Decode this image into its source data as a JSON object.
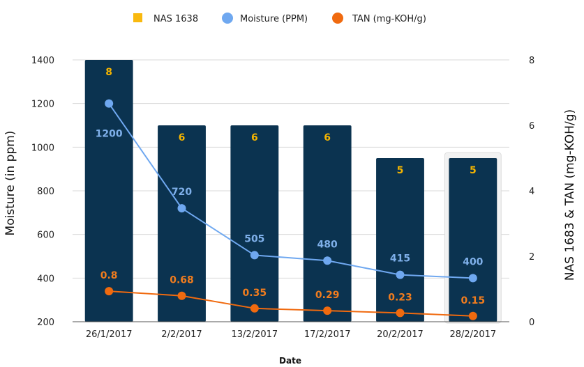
{
  "chart_data": {
    "type": "bar",
    "categories": [
      "26/1/2017",
      "2/2/2017",
      "13/2/2017",
      "17/2/2017",
      "20/2/2017",
      "28/2/2017"
    ],
    "series": [
      {
        "name": "NAS 1638",
        "type": "bar",
        "axis": "right",
        "values": [
          8,
          6,
          6,
          6,
          5,
          5
        ],
        "color": "#0b3350",
        "label_color": "#f4b400",
        "legend_color": "#f9b90f"
      },
      {
        "name": "Moisture (PPM)",
        "type": "line",
        "axis": "left",
        "values": [
          1200,
          720,
          505,
          480,
          415,
          400
        ],
        "color": "#6fa8f0",
        "label_color": "#7fb0ea"
      },
      {
        "name": "TAN (mg-KOH/g)",
        "type": "line",
        "axis": "left",
        "values": [
          0.8,
          0.68,
          0.35,
          0.29,
          0.23,
          0.15
        ],
        "color": "#f06a0f",
        "label_color": "#f07c1e"
      }
    ],
    "xlabel": "Date",
    "ylabel": "Moisture (in ppm)",
    "y2label": "NAS 1683 & TAN (mg-KOH/g)",
    "ylim": [
      200,
      1400
    ],
    "y2lim": [
      0,
      8
    ],
    "yticks": [
      "200",
      "400",
      "600",
      "800",
      "1000",
      "1200",
      "1400"
    ],
    "y2ticks": [
      "0",
      "2",
      "4",
      "6",
      "8"
    ],
    "legend_position": "top",
    "grid": true,
    "highlighted_category": "28/2/2017"
  }
}
